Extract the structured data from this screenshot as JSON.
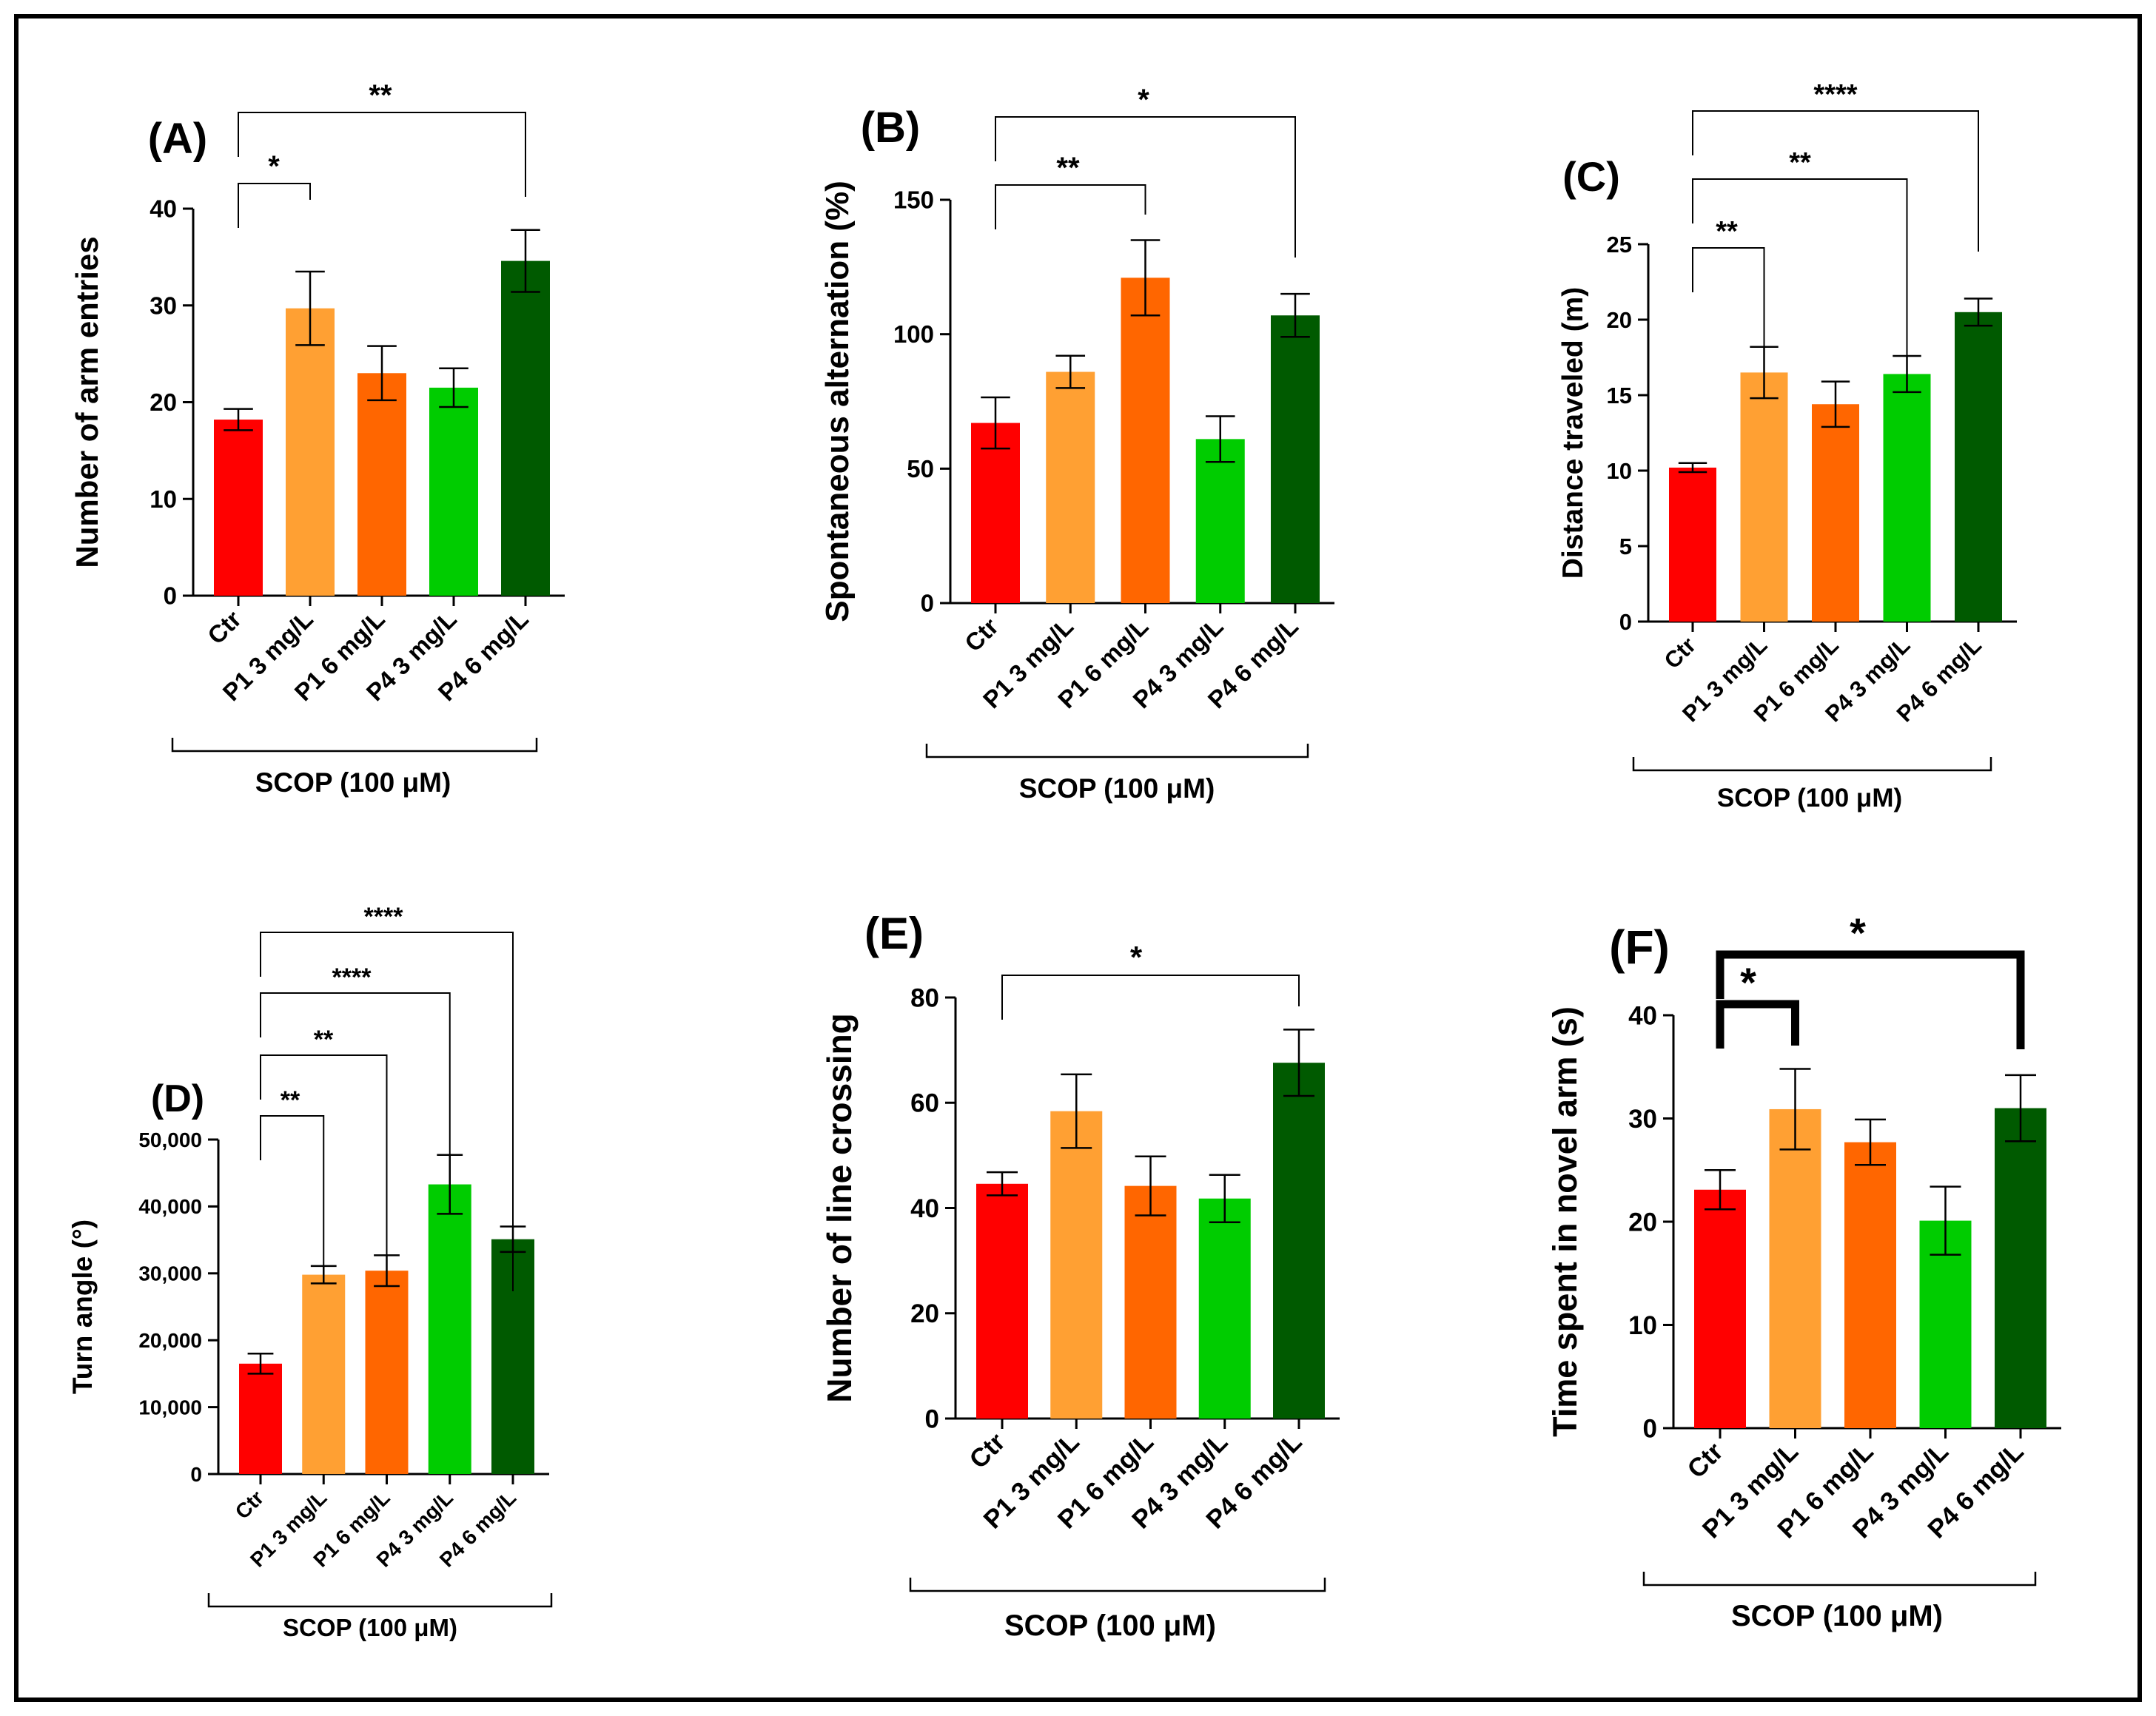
{
  "scop_label": "SCOP (100  μM)",
  "colors": [
    "#ff0000",
    "#ffa033",
    "#ff6600",
    "#00cc00",
    "#005a00"
  ],
  "chart_data": [
    {
      "id": "A",
      "type": "bar",
      "panel_label": "(A)",
      "ylabel": "Number of arm entries",
      "categories": [
        "Ctr",
        "P1 3 mg/L",
        "P1 6 mg/L",
        "P4 3 mg/L",
        "P4 6 mg/L"
      ],
      "values": [
        18.2,
        29.7,
        23.0,
        21.5,
        34.6
      ],
      "errors": [
        1.1,
        3.8,
        2.8,
        2.0,
        3.2
      ],
      "ylim": [
        0,
        40
      ],
      "yticks": [
        {
          "v": 0,
          "label": "0"
        },
        {
          "v": 10,
          "label": "10"
        },
        {
          "v": 20,
          "label": "20"
        },
        {
          "v": 30,
          "label": "30"
        },
        {
          "v": 40,
          "label": "40"
        }
      ],
      "annotations": [
        {
          "from": 0,
          "to": 1,
          "label": "*"
        },
        {
          "from": 0,
          "to": 4,
          "label": "**"
        }
      ]
    },
    {
      "id": "B",
      "type": "bar",
      "panel_label": "(B)",
      "ylabel": "Spontaneous alternation (%)",
      "categories": [
        "Ctr",
        "P1 3 mg/L",
        "P1 6 mg/L",
        "P4 3 mg/L",
        "P4 6 mg/L"
      ],
      "values": [
        67,
        86,
        121,
        61,
        107
      ],
      "errors": [
        9.5,
        6,
        14,
        8.5,
        8
      ],
      "ylim": [
        0,
        150
      ],
      "yticks": [
        {
          "v": 0,
          "label": "0"
        },
        {
          "v": 50,
          "label": "50"
        },
        {
          "v": 100,
          "label": "100"
        },
        {
          "v": 150,
          "label": "150"
        }
      ],
      "annotations": [
        {
          "from": 0,
          "to": 2,
          "label": "**"
        },
        {
          "from": 0,
          "to": 4,
          "label": "*"
        }
      ]
    },
    {
      "id": "C",
      "type": "bar",
      "panel_label": "(C)",
      "ylabel": "Distance traveled (m)",
      "categories": [
        "Ctr",
        "P1 3 mg/L",
        "P1 6 mg/L",
        "P4 3 mg/L",
        "P4 6 mg/L"
      ],
      "values": [
        10.2,
        16.5,
        14.4,
        16.4,
        20.5
      ],
      "errors": [
        0.3,
        1.7,
        1.5,
        1.2,
        0.9
      ],
      "ylim": [
        0,
        25
      ],
      "yticks": [
        {
          "v": 0,
          "label": "0"
        },
        {
          "v": 5,
          "label": "5"
        },
        {
          "v": 10,
          "label": "10"
        },
        {
          "v": 15,
          "label": "15"
        },
        {
          "v": 20,
          "label": "20"
        },
        {
          "v": 25,
          "label": "25"
        }
      ],
      "annotations": [
        {
          "from": 0,
          "to": 1,
          "label": "**"
        },
        {
          "from": 0,
          "to": 3,
          "label": "**"
        },
        {
          "from": 0,
          "to": 4,
          "label": "****"
        }
      ]
    },
    {
      "id": "D",
      "type": "bar",
      "panel_label": "(D)",
      "ylabel": "Turn angle (°)",
      "categories": [
        "Ctr",
        "P1 3 mg/L",
        "P1 6 mg/L",
        "P4 3 mg/L",
        "P4 6 mg/L"
      ],
      "values": [
        16500,
        29800,
        30400,
        43300,
        35100
      ],
      "errors": [
        1500,
        1300,
        2300,
        4400,
        1900
      ],
      "ylim": [
        0,
        50000
      ],
      "yticks": [
        {
          "v": 0,
          "label": "0"
        },
        {
          "v": 10000,
          "label": "10,000"
        },
        {
          "v": 20000,
          "label": "20,000"
        },
        {
          "v": 30000,
          "label": "30,000"
        },
        {
          "v": 40000,
          "label": "40,000"
        },
        {
          "v": 50000,
          "label": "50,000"
        }
      ],
      "annotations": [
        {
          "from": 0,
          "to": 1,
          "label": "**"
        },
        {
          "from": 0,
          "to": 2,
          "label": "**"
        },
        {
          "from": 0,
          "to": 3,
          "label": "****"
        },
        {
          "from": 0,
          "to": 4,
          "label": "****"
        }
      ]
    },
    {
      "id": "E",
      "type": "bar",
      "panel_label": "(E)",
      "ylabel": "Number of line crossing",
      "categories": [
        "Ctr",
        "P1 3 mg/L",
        "P1 6 mg/L",
        "P4 3 mg/L",
        "P4 6 mg/L"
      ],
      "values": [
        44.6,
        58.4,
        44.2,
        41.8,
        67.6
      ],
      "errors": [
        2.2,
        7,
        5.6,
        4.5,
        6.3
      ],
      "ylim": [
        0,
        80
      ],
      "yticks": [
        {
          "v": 0,
          "label": "0"
        },
        {
          "v": 20,
          "label": "20"
        },
        {
          "v": 40,
          "label": "40"
        },
        {
          "v": 60,
          "label": "60"
        },
        {
          "v": 80,
          "label": "80"
        }
      ],
      "annotations": [
        {
          "from": 0,
          "to": 4,
          "label": "*"
        }
      ]
    },
    {
      "id": "F",
      "type": "bar",
      "panel_label": "(F)",
      "ylabel": "Time spent in novel arm (s)",
      "categories": [
        "Ctr",
        "P1 3 mg/L",
        "P1 6 mg/L",
        "P4 3 mg/L",
        "P4 6 mg/L"
      ],
      "values": [
        23.1,
        30.9,
        27.7,
        20.1,
        31.0
      ],
      "errors": [
        1.9,
        3.9,
        2.2,
        3.3,
        3.2
      ],
      "ylim": [
        0,
        40
      ],
      "yticks": [
        {
          "v": 0,
          "label": "0"
        },
        {
          "v": 10,
          "label": "10"
        },
        {
          "v": 20,
          "label": "20"
        },
        {
          "v": 30,
          "label": "30"
        },
        {
          "v": 40,
          "label": "40"
        }
      ],
      "annotations": [
        {
          "from": 0,
          "to": 1,
          "label": "*"
        },
        {
          "from": 0,
          "to": 4,
          "label": "*"
        }
      ]
    }
  ]
}
